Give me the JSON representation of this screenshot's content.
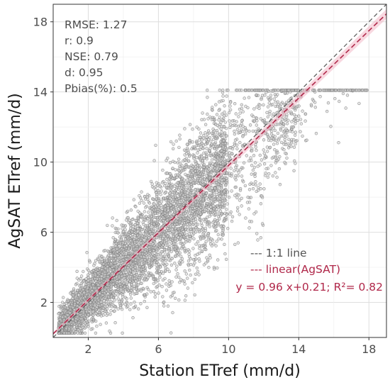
{
  "chart_data": {
    "type": "scatter",
    "xlabel": "Station ETref (mm/d)",
    "ylabel": "AgSAT ETref (mm/d)",
    "xlim": [
      0,
      19
    ],
    "ylim": [
      0,
      19
    ],
    "xticks": [
      2,
      6,
      10,
      14,
      18
    ],
    "yticks": [
      2,
      6,
      10,
      14,
      18
    ],
    "xtick_labels": [
      "2",
      "6",
      "10",
      "14",
      "18"
    ],
    "ytick_labels": [
      "2",
      "6",
      "10",
      "14",
      "18"
    ],
    "grid": true,
    "point_color": "#7f7f7f",
    "stats": [
      "RMSE: 1.27",
      "r: 0.9",
      "NSE: 0.79",
      "d: 0.95",
      "Pbias(%): 0.5"
    ],
    "legend": {
      "position": "bottom-right",
      "entries": [
        {
          "label": "--- 1:1 line",
          "color": "#555555"
        },
        {
          "label": "--- linear(AgSAT)",
          "color": "#b0284a"
        },
        {
          "label": "y = 0.96 x+0.21; R²= 0.82",
          "color": "#b0284a"
        }
      ]
    },
    "reference_line": {
      "slope": 1,
      "intercept": 0,
      "color": "#555555"
    },
    "fit_line": {
      "slope": 0.96,
      "intercept": 0.21,
      "color": "#b0284a"
    },
    "band_color": "#f2b8c6"
  }
}
